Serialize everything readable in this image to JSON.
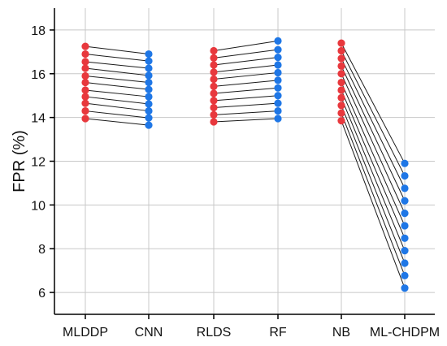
{
  "chart_data": {
    "type": "scatter",
    "title": "",
    "xlabel": "",
    "ylabel": "FPR (%)",
    "ylim": [
      5,
      19
    ],
    "yticks": [
      6,
      8,
      10,
      12,
      14,
      16,
      18
    ],
    "grid": true,
    "legend": "none",
    "categories": [
      "MLDDP",
      "CNN",
      "RLDS",
      "RF",
      "NB",
      "ML-CHDPM"
    ],
    "colors": {
      "red": "#e8383d",
      "blue": "#1f77e6",
      "line": "#1a1a1a",
      "grid": "#c8c8c8",
      "axis": "#000000"
    },
    "pairs": [
      {
        "from": "MLDDP",
        "to": "CNN",
        "from_values": [
          13.95,
          14.3,
          14.65,
          14.95,
          15.25,
          15.6,
          15.9,
          16.25,
          16.55,
          16.9,
          17.25
        ],
        "to_values": [
          13.65,
          13.98,
          14.3,
          14.62,
          14.95,
          15.28,
          15.6,
          15.92,
          16.25,
          16.58,
          16.9
        ]
      },
      {
        "from": "RLDS",
        "to": "RF",
        "from_values": [
          13.8,
          14.12,
          14.45,
          14.77,
          15.1,
          15.42,
          15.75,
          16.07,
          16.4,
          16.72,
          17.05
        ],
        "to_values": [
          13.95,
          14.3,
          14.65,
          15.0,
          15.35,
          15.7,
          16.05,
          16.4,
          16.75,
          17.1,
          17.5
        ]
      },
      {
        "from": "NB",
        "to": "ML-CHDPM",
        "from_values": [
          13.85,
          14.2,
          14.55,
          14.9,
          15.25,
          15.6,
          16.0,
          16.35,
          16.7,
          17.05,
          17.4
        ],
        "to_values": [
          6.2,
          6.77,
          7.34,
          7.91,
          8.48,
          9.05,
          9.62,
          10.19,
          10.76,
          11.33,
          11.9
        ]
      }
    ]
  }
}
